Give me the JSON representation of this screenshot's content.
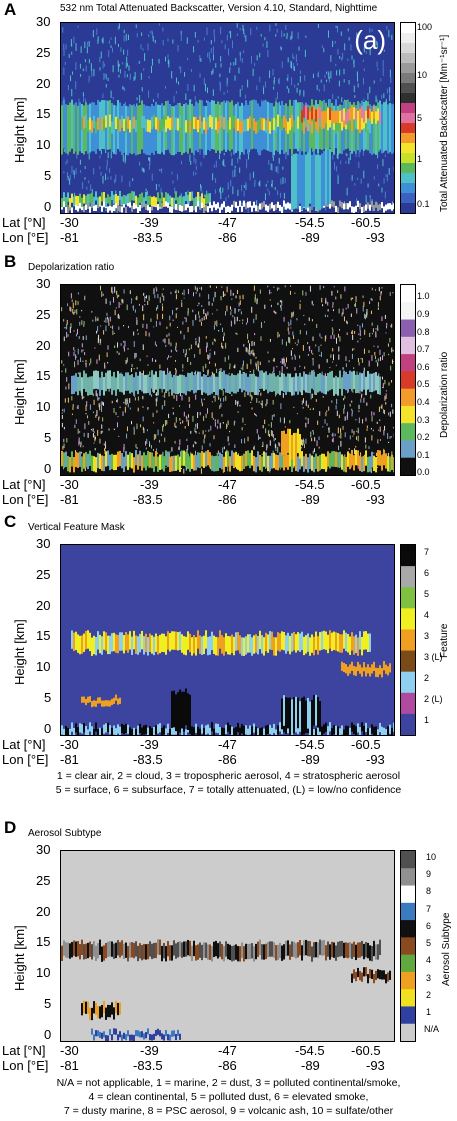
{
  "panels": [
    {
      "letter": "A",
      "title": "532 nm Total Attenuated Backscatter, Version 4.10, Standard, Nighttime",
      "inset_label": "(a)",
      "ylabel": "Height [km]",
      "colorbar_label": "Total Attenuated Backscatter [Mm⁻¹sr⁻¹]",
      "colorbar_ticks": [
        "100",
        "10",
        "5",
        "1",
        "0.1"
      ]
    },
    {
      "letter": "B",
      "title": "Depolarization ratio",
      "ylabel": "Height [km]",
      "colorbar_label": "Depolarization ratio",
      "colorbar_ticks": [
        "1.0",
        "0.9",
        "0.8",
        "0.7",
        "0.6",
        "0.5",
        "0.4",
        "0.3",
        "0.2",
        "0.1",
        "0.0"
      ]
    },
    {
      "letter": "C",
      "title": "Vertical Feature Mask",
      "ylabel": "Height [km]",
      "colorbar_label": "Feature",
      "colorbar_ticks": [
        "7",
        "6",
        "5",
        "4",
        "3",
        "3 (L)",
        "2",
        "2 (L)",
        "1"
      ],
      "caption": [
        "1 = clear air, 2 = cloud, 3 = tropospheric aerosol, 4 = stratospheric aerosol",
        "5 = surface, 6 = subsurface, 7 = totally attenuated, (L) = low/no confidence"
      ]
    },
    {
      "letter": "D",
      "title": "Aerosol Subtype",
      "ylabel": "Height [km]",
      "colorbar_label": "Aerosol Subtype",
      "colorbar_ticks": [
        "10",
        "9",
        "8",
        "7",
        "6",
        "5",
        "4",
        "3",
        "2",
        "1",
        "N/A"
      ],
      "caption": [
        "N/A = not applicable, 1 = marine, 2 = dust, 3 = polluted continental/smoke,",
        "4 = clean continental, 5 = polluted dust, 6 = elevated smoke,",
        "7 = dusty marine, 8 = PSC aerosol, 9 = volcanic ash, 10 = sulfate/other"
      ]
    }
  ],
  "axes": {
    "lat_label": "Lat [°N]",
    "lon_label": "Lon [°E]",
    "lat_ticks": [
      "-30",
      "-39",
      "-47",
      "-54.5",
      "-60.5"
    ],
    "lon_ticks": [
      "-81",
      "-83.5",
      "-86",
      "-89",
      "-93"
    ],
    "y_ticks": [
      "30",
      "25",
      "20",
      "15",
      "10",
      "5",
      "0"
    ]
  },
  "chart_data": [
    {
      "type": "heatmap",
      "title": "532 nm Total Attenuated Backscatter, Version 4.10, Standard, Nighttime",
      "ylabel": "Height [km]",
      "ylim": [
        -1,
        30
      ],
      "x": {
        "lat": [
          -30,
          -39,
          -47,
          -54.5,
          -60.5
        ],
        "lon": [
          -81,
          -83.5,
          -86,
          -89,
          -93
        ]
      },
      "colorbar": {
        "label": "Total Attenuated Backscatter [Mm⁻¹sr⁻¹]",
        "scale": "log",
        "range": [
          0.1,
          100
        ]
      },
      "colors": {
        "background": "#2a3a95",
        "noise": "#4a7fd0",
        "low": "#3f8fd8",
        "mid": "#4fc0c8",
        "green": "#5cb85c",
        "yellow": "#f3e32a",
        "orange": "#f29a2a",
        "red": "#d83a2a",
        "pink": "#e07ab0",
        "grey": "#9a9a9a",
        "white": "#ffffff"
      }
    },
    {
      "type": "heatmap",
      "title": "Depolarization ratio",
      "ylabel": "Height [km]",
      "ylim": [
        -1,
        30
      ],
      "colorbar": {
        "label": "Depolarization ratio",
        "range": [
          0.0,
          1.0
        ]
      },
      "colors": {
        "background": "#101010",
        "cloud": "#6fb3a8",
        "low": "#6aa0c8",
        "orange": "#f0a020",
        "yellow": "#f0e020",
        "green": "#5cb85c"
      }
    },
    {
      "type": "heatmap",
      "title": "Vertical Feature Mask",
      "ylabel": "Height [km]",
      "ylim": [
        -1,
        30
      ],
      "categories": [
        "1",
        "2 (L)",
        "2",
        "3 (L)",
        "3",
        "4",
        "5",
        "6",
        "7"
      ],
      "colors": {
        "1": "#3d44a0",
        "2 (L)": "#b04aa0",
        "2": "#8fd0f0",
        "3 (L)": "#7a4a18",
        "3": "#f0a020",
        "4": "#f0f020",
        "5": "#80c040",
        "6": "#a8a8a8",
        "7": "#0a0a0a"
      }
    },
    {
      "type": "heatmap",
      "title": "Aerosol Subtype",
      "ylabel": "Height [km]",
      "ylim": [
        -1,
        30
      ],
      "categories": [
        "N/A",
        "1",
        "2",
        "3",
        "4",
        "5",
        "6",
        "7",
        "8",
        "9",
        "10"
      ],
      "colors": {
        "N/A": "#cccccc",
        "1": "#3040a0",
        "2": "#f0e020",
        "3": "#f0a020",
        "4": "#60a840",
        "5": "#8a4a20",
        "6": "#101010",
        "7": "#3a7ac0",
        "8": "#ffffff",
        "9": "#909090",
        "10": "#505050"
      }
    }
  ]
}
